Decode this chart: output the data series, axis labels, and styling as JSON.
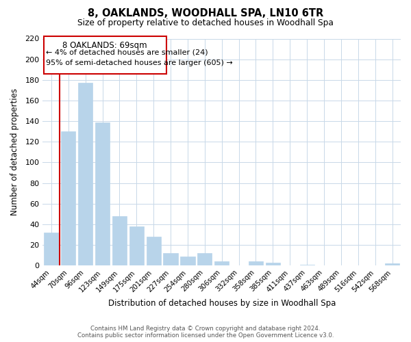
{
  "title": "8, OAKLANDS, WOODHALL SPA, LN10 6TR",
  "subtitle": "Size of property relative to detached houses in Woodhall Spa",
  "xlabel": "Distribution of detached houses by size in Woodhall Spa",
  "ylabel": "Number of detached properties",
  "bar_labels": [
    "44sqm",
    "70sqm",
    "96sqm",
    "123sqm",
    "149sqm",
    "175sqm",
    "201sqm",
    "227sqm",
    "254sqm",
    "280sqm",
    "306sqm",
    "332sqm",
    "358sqm",
    "385sqm",
    "411sqm",
    "437sqm",
    "463sqm",
    "489sqm",
    "516sqm",
    "542sqm",
    "568sqm"
  ],
  "bar_values": [
    32,
    130,
    177,
    139,
    48,
    38,
    28,
    12,
    9,
    12,
    4,
    0,
    4,
    3,
    0,
    1,
    0,
    0,
    0,
    0,
    2
  ],
  "bar_color": "#b8d4ea",
  "highlight_line_color": "#cc0000",
  "annotation_title": "8 OAKLANDS: 69sqm",
  "annotation_line1": "← 4% of detached houses are smaller (24)",
  "annotation_line2": "95% of semi-detached houses are larger (605) →",
  "annotation_box_color": "#cc0000",
  "ylim": [
    0,
    220
  ],
  "yticks": [
    0,
    20,
    40,
    60,
    80,
    100,
    120,
    140,
    160,
    180,
    200,
    220
  ],
  "footer_line1": "Contains HM Land Registry data © Crown copyright and database right 2024.",
  "footer_line2": "Contains public sector information licensed under the Open Government Licence v3.0.",
  "background_color": "#ffffff",
  "grid_color": "#c8d8e8",
  "fig_width": 6.0,
  "fig_height": 5.0
}
